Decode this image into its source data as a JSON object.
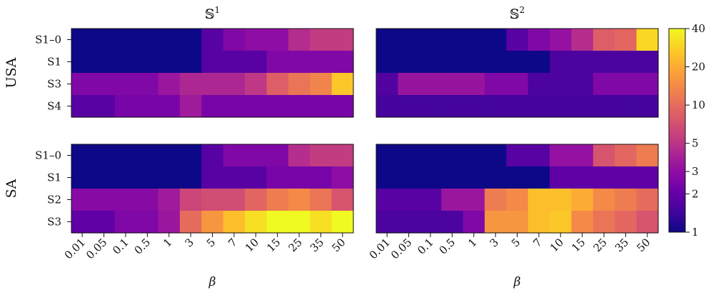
{
  "chart_data": {
    "type": "heatmap",
    "colormap": "plasma",
    "color_scale": "log",
    "x_label": "β",
    "x_categories": [
      "0.01",
      "0.05",
      "0.1",
      "0.5",
      "1",
      "3",
      "5",
      "7",
      "10",
      "15",
      "25",
      "35",
      "50"
    ],
    "columns": [
      {
        "title": "𝕊",
        "title_sup": "1"
      },
      {
        "title": "𝕊",
        "title_sup": "2"
      }
    ],
    "colorbar": {
      "range": [
        1,
        40
      ],
      "ticks": [
        1,
        2,
        3,
        5,
        10,
        20,
        40
      ],
      "tick_labels": [
        "1",
        "2",
        "3",
        "5",
        "10",
        "20",
        "40"
      ]
    },
    "groups": [
      {
        "label": "USA",
        "rows": [
          "S1–0",
          "S1",
          "S3",
          "S4"
        ],
        "panels": [
          [
            [
              1,
              1,
              1,
              1,
              1,
              1,
              1.8,
              2.6,
              3,
              3,
              4.5,
              5.5,
              5.5
            ],
            [
              1,
              1,
              1,
              1,
              1,
              1,
              1.8,
              1.8,
              1.8,
              2.6,
              2.6,
              2.6,
              2.6
            ],
            [
              2.6,
              2.6,
              2.6,
              2.6,
              3.4,
              4.2,
              4.2,
              4.2,
              5.2,
              8.5,
              11,
              13,
              26
            ],
            [
              1.8,
              1.8,
              2.4,
              2.4,
              2.4,
              3.6,
              2.4,
              2.4,
              2.4,
              2.4,
              2.4,
              2.4,
              2.4
            ]
          ],
          [
            [
              1,
              1,
              1,
              1,
              1,
              1,
              1.8,
              2.6,
              3.2,
              4.6,
              8.5,
              9.5,
              30
            ],
            [
              1,
              1,
              1,
              1,
              1,
              1,
              1,
              1,
              1.6,
              1.6,
              1.6,
              1.6,
              1.6
            ],
            [
              1.7,
              3.3,
              3.3,
              3.3,
              3.3,
              2.6,
              2.6,
              1.6,
              1.6,
              1.6,
              2.6,
              2.6,
              2.6
            ],
            [
              1.5,
              1.5,
              1.5,
              1.5,
              1.5,
              1.5,
              1.5,
              1.5,
              1.5,
              1.5,
              1.5,
              1.5,
              1.5
            ]
          ]
        ]
      },
      {
        "label": "SA",
        "rows": [
          "S1–0",
          "S1",
          "S2",
          "S3"
        ],
        "panels": [
          [
            [
              1,
              1,
              1,
              1,
              1,
              1,
              1.8,
              2.6,
              2.6,
              2.6,
              4.6,
              5.5,
              5.5
            ],
            [
              1,
              1,
              1,
              1,
              1,
              1,
              1.8,
              1.8,
              1.8,
              2.4,
              2.4,
              2.4,
              3
            ],
            [
              2.8,
              2.8,
              2.8,
              2.8,
              3.6,
              6.2,
              6.8,
              6.8,
              9.2,
              12,
              14,
              11,
              7.5
            ],
            [
              1.9,
              1.9,
              2.6,
              2.6,
              3.4,
              10,
              16,
              24,
              32,
              40,
              40,
              32,
              40
            ]
          ],
          [
            [
              1,
              1,
              1,
              1,
              1,
              1,
              1.8,
              1.8,
              3.2,
              3.2,
              7.5,
              9.5,
              12
            ],
            [
              1,
              1,
              1,
              1,
              1,
              1,
              1,
              1,
              1.9,
              1.9,
              1.9,
              1.9,
              1.9
            ],
            [
              1.8,
              1.8,
              1.8,
              3.4,
              3.4,
              12,
              14,
              24,
              24,
              20,
              14,
              12,
              10
            ],
            [
              1.6,
              1.6,
              1.6,
              1.6,
              2.6,
              16,
              16,
              24,
              26,
              14,
              11,
              9.5,
              7.5
            ]
          ]
        ]
      }
    ]
  }
}
